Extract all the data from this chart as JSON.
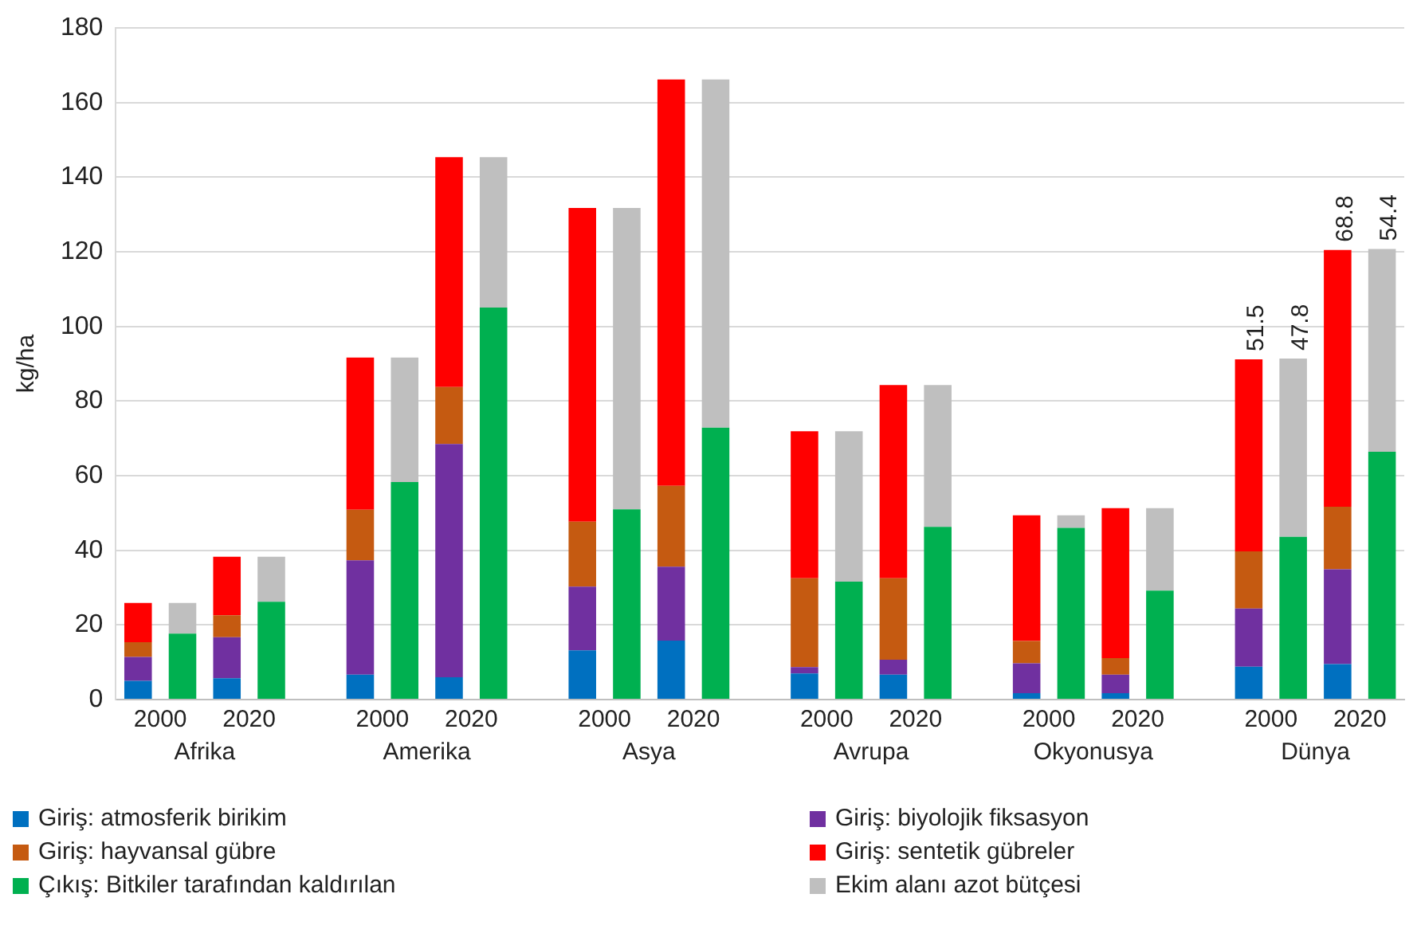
{
  "chart_data": {
    "type": "bar",
    "stacked": true,
    "ylabel": "kg/ha",
    "ylim": [
      0,
      180
    ],
    "yticks": [
      0,
      20,
      40,
      60,
      80,
      100,
      120,
      140,
      160,
      180
    ],
    "grid": "y",
    "legend": "bottom",
    "categories": [
      "2000",
      null,
      "2020",
      null,
      null,
      "2000",
      null,
      "2020",
      null,
      null,
      "2000",
      null,
      "2020",
      null,
      null,
      "2000",
      null,
      "2020",
      null,
      null,
      "2000",
      null,
      "2020",
      null,
      null,
      "2000",
      null,
      "2020",
      null
    ],
    "annotations": [
      "Afrika",
      "Amerika",
      "Asya",
      "Avrupa",
      "Okyonusya",
      "Dünya"
    ],
    "series": [
      {
        "name": "Giriş: atmosferik birikim",
        "color": "#0070c0",
        "values": [
          5.0,
          null,
          5.7,
          null,
          null,
          6.7,
          null,
          6.0,
          null,
          null,
          13.2,
          null,
          15.8,
          null,
          null,
          7.0,
          null,
          6.7,
          null,
          null,
          1.7,
          null,
          1.7,
          null,
          null,
          8.8,
          null,
          9.5,
          null
        ]
      },
      {
        "name": "Giriş: biyolojik fiksasyon",
        "color": "#7030a0",
        "values": [
          6.4,
          null,
          11.0,
          null,
          null,
          30.6,
          null,
          62.5,
          null,
          null,
          17.1,
          null,
          19.8,
          null,
          null,
          1.7,
          null,
          4.0,
          null,
          null,
          8.0,
          null,
          5.0,
          null,
          null,
          15.6,
          null,
          25.4,
          null
        ]
      },
      {
        "name": "Giriş: hayvansal gübre",
        "color": "#c55a11",
        "values": [
          4.0,
          null,
          5.9,
          null,
          null,
          13.6,
          null,
          15.3,
          null,
          null,
          17.4,
          null,
          21.7,
          null,
          null,
          23.8,
          null,
          21.8,
          null,
          null,
          6.0,
          null,
          4.4,
          null,
          null,
          15.3,
          null,
          16.8,
          null
        ]
      },
      {
        "name": "Giriş: sentetik gübreler",
        "color": "#ff0000",
        "values": [
          10.5,
          null,
          15.7,
          null,
          null,
          40.8,
          null,
          61.6,
          null,
          null,
          84.1,
          null,
          108.9,
          null,
          null,
          39.4,
          null,
          51.8,
          null,
          null,
          33.7,
          null,
          40.2,
          null,
          null,
          51.5,
          null,
          68.8,
          null
        ],
        "value_labels": [
          null,
          null,
          null,
          null,
          null,
          null,
          null,
          null,
          null,
          null,
          null,
          null,
          null,
          null,
          null,
          null,
          null,
          null,
          null,
          null,
          null,
          null,
          null,
          null,
          null,
          "51.5",
          null,
          "68.8",
          null
        ]
      },
      {
        "name": "Çıkış: Bitkiler tarafından kaldırılan",
        "color": "#00b050",
        "values": [
          null,
          17.7,
          null,
          26.2,
          null,
          null,
          58.3,
          null,
          105.1,
          null,
          null,
          51.0,
          null,
          72.9,
          null,
          null,
          31.6,
          null,
          46.3,
          null,
          null,
          46.0,
          null,
          29.2,
          null,
          null,
          43.6,
          null,
          66.4
        ]
      },
      {
        "name": "Ekim alanı azot bütçesi",
        "color": "#bfbfbf",
        "values": [
          null,
          8.2,
          null,
          12.1,
          null,
          null,
          33.4,
          null,
          40.3,
          null,
          null,
          80.8,
          null,
          93.3,
          null,
          null,
          40.3,
          null,
          38.0,
          null,
          null,
          3.4,
          null,
          22.1,
          null,
          null,
          47.8,
          null,
          54.4
        ],
        "value_labels": [
          null,
          null,
          null,
          null,
          null,
          null,
          null,
          null,
          null,
          null,
          null,
          null,
          null,
          null,
          null,
          null,
          null,
          null,
          null,
          null,
          null,
          null,
          null,
          null,
          null,
          null,
          "47.8",
          null,
          "54.4"
        ]
      }
    ]
  }
}
